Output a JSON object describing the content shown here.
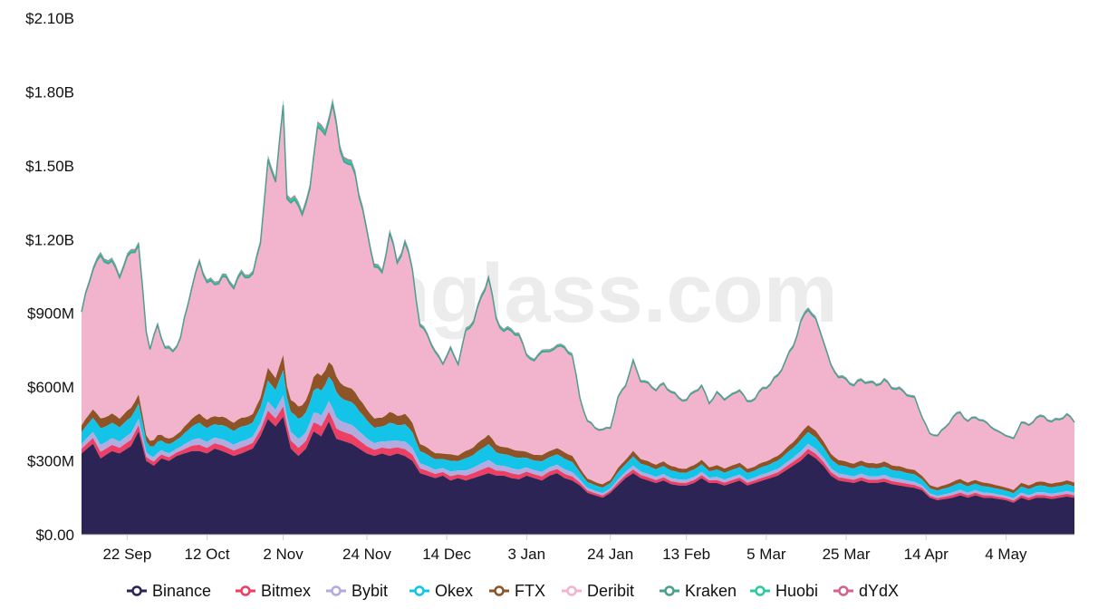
{
  "watermark": "coinglass.com",
  "chart_data": {
    "type": "area",
    "stacked": true,
    "title": "",
    "xlabel": "",
    "ylabel": "",
    "ylim": [
      0,
      2100000000
    ],
    "y_ticks": [
      0,
      300000000,
      600000000,
      900000000,
      1200000000,
      1500000000,
      1800000000,
      2100000000
    ],
    "y_tick_labels": [
      "$0.00",
      "$300M",
      "$600M",
      "$900M",
      "$1.20B",
      "$1.50B",
      "$1.80B",
      "$2.10B"
    ],
    "x_tick_labels": [
      "22 Sep",
      "12 Oct",
      "2 Nov",
      "24 Nov",
      "14 Dec",
      "3 Jan",
      "24 Jan",
      "13 Feb",
      "5 Mar",
      "25 Mar",
      "14 Apr",
      "4 May"
    ],
    "x_tick_index": [
      12,
      33,
      53,
      75,
      96,
      117,
      139,
      159,
      180,
      201,
      222,
      243
    ],
    "n_points": 262,
    "grid": false,
    "legend_position": "bottom",
    "anchors_total": [
      [
        0,
        980
      ],
      [
        3,
        1180
      ],
      [
        5,
        1230
      ],
      [
        8,
        1200
      ],
      [
        10,
        1150
      ],
      [
        13,
        1250
      ],
      [
        15,
        1270
      ],
      [
        17,
        900
      ],
      [
        18,
        820
      ],
      [
        20,
        920
      ],
      [
        22,
        820
      ],
      [
        24,
        800
      ],
      [
        26,
        860
      ],
      [
        29,
        1100
      ],
      [
        31,
        1200
      ],
      [
        33,
        1120
      ],
      [
        35,
        1100
      ],
      [
        37,
        1140
      ],
      [
        40,
        1100
      ],
      [
        42,
        1150
      ],
      [
        45,
        1140
      ],
      [
        47,
        1300
      ],
      [
        49,
        1640
      ],
      [
        51,
        1580
      ],
      [
        53,
        1890
      ],
      [
        54,
        1500
      ],
      [
        56,
        1480
      ],
      [
        58,
        1440
      ],
      [
        60,
        1520
      ],
      [
        62,
        1840
      ],
      [
        64,
        1760
      ],
      [
        66,
        1940
      ],
      [
        68,
        1700
      ],
      [
        70,
        1660
      ],
      [
        72,
        1600
      ],
      [
        74,
        1440
      ],
      [
        75,
        1340
      ],
      [
        77,
        1200
      ],
      [
        79,
        1150
      ],
      [
        81,
        1350
      ],
      [
        83,
        1200
      ],
      [
        85,
        1300
      ],
      [
        87,
        1180
      ],
      [
        89,
        920
      ],
      [
        91,
        890
      ],
      [
        93,
        800
      ],
      [
        95,
        760
      ],
      [
        97,
        820
      ],
      [
        99,
        760
      ],
      [
        101,
        900
      ],
      [
        103,
        950
      ],
      [
        105,
        1050
      ],
      [
        107,
        1150
      ],
      [
        109,
        960
      ],
      [
        111,
        900
      ],
      [
        113,
        910
      ],
      [
        115,
        880
      ],
      [
        117,
        800
      ],
      [
        119,
        760
      ],
      [
        121,
        820
      ],
      [
        123,
        800
      ],
      [
        125,
        840
      ],
      [
        127,
        820
      ],
      [
        129,
        800
      ],
      [
        131,
        600
      ],
      [
        133,
        500
      ],
      [
        135,
        470
      ],
      [
        137,
        460
      ],
      [
        139,
        470
      ],
      [
        141,
        600
      ],
      [
        143,
        660
      ],
      [
        145,
        760
      ],
      [
        147,
        680
      ],
      [
        149,
        660
      ],
      [
        151,
        640
      ],
      [
        153,
        660
      ],
      [
        155,
        630
      ],
      [
        157,
        600
      ],
      [
        159,
        590
      ],
      [
        161,
        630
      ],
      [
        163,
        650
      ],
      [
        165,
        580
      ],
      [
        167,
        620
      ],
      [
        169,
        600
      ],
      [
        171,
        610
      ],
      [
        173,
        640
      ],
      [
        175,
        580
      ],
      [
        177,
        600
      ],
      [
        179,
        640
      ],
      [
        181,
        660
      ],
      [
        183,
        700
      ],
      [
        185,
        760
      ],
      [
        187,
        830
      ],
      [
        189,
        930
      ],
      [
        191,
        1000
      ],
      [
        193,
        940
      ],
      [
        195,
        860
      ],
      [
        197,
        740
      ],
      [
        199,
        700
      ],
      [
        201,
        680
      ],
      [
        203,
        660
      ],
      [
        205,
        680
      ],
      [
        207,
        670
      ],
      [
        209,
        660
      ],
      [
        211,
        680
      ],
      [
        213,
        650
      ],
      [
        215,
        640
      ],
      [
        217,
        620
      ],
      [
        219,
        600
      ],
      [
        221,
        520
      ],
      [
        223,
        440
      ],
      [
        225,
        440
      ],
      [
        227,
        470
      ],
      [
        229,
        520
      ],
      [
        231,
        540
      ],
      [
        233,
        500
      ],
      [
        235,
        520
      ],
      [
        237,
        500
      ],
      [
        239,
        480
      ],
      [
        241,
        450
      ],
      [
        243,
        440
      ],
      [
        245,
        420
      ],
      [
        247,
        500
      ],
      [
        249,
        480
      ],
      [
        251,
        520
      ],
      [
        253,
        520
      ],
      [
        255,
        500
      ],
      [
        257,
        510
      ],
      [
        259,
        530
      ],
      [
        261,
        500
      ]
    ],
    "anchors_binance": [
      [
        0,
        330
      ],
      [
        3,
        370
      ],
      [
        5,
        310
      ],
      [
        8,
        340
      ],
      [
        10,
        330
      ],
      [
        13,
        360
      ],
      [
        15,
        420
      ],
      [
        17,
        300
      ],
      [
        19,
        280
      ],
      [
        21,
        310
      ],
      [
        23,
        300
      ],
      [
        25,
        320
      ],
      [
        27,
        330
      ],
      [
        29,
        340
      ],
      [
        31,
        340
      ],
      [
        33,
        330
      ],
      [
        35,
        350
      ],
      [
        37,
        340
      ],
      [
        40,
        320
      ],
      [
        42,
        330
      ],
      [
        45,
        350
      ],
      [
        47,
        400
      ],
      [
        49,
        470
      ],
      [
        51,
        440
      ],
      [
        53,
        480
      ],
      [
        55,
        350
      ],
      [
        57,
        320
      ],
      [
        59,
        350
      ],
      [
        61,
        420
      ],
      [
        63,
        400
      ],
      [
        65,
        460
      ],
      [
        67,
        390
      ],
      [
        69,
        380
      ],
      [
        71,
        370
      ],
      [
        73,
        350
      ],
      [
        75,
        330
      ],
      [
        77,
        320
      ],
      [
        79,
        330
      ],
      [
        81,
        320
      ],
      [
        83,
        330
      ],
      [
        85,
        320
      ],
      [
        87,
        300
      ],
      [
        89,
        250
      ],
      [
        91,
        240
      ],
      [
        93,
        230
      ],
      [
        95,
        240
      ],
      [
        97,
        220
      ],
      [
        99,
        230
      ],
      [
        101,
        220
      ],
      [
        103,
        230
      ],
      [
        105,
        240
      ],
      [
        107,
        250
      ],
      [
        109,
        240
      ],
      [
        111,
        240
      ],
      [
        113,
        230
      ],
      [
        115,
        225
      ],
      [
        117,
        240
      ],
      [
        119,
        230
      ],
      [
        121,
        220
      ],
      [
        123,
        240
      ],
      [
        125,
        250
      ],
      [
        127,
        230
      ],
      [
        129,
        220
      ],
      [
        131,
        200
      ],
      [
        133,
        170
      ],
      [
        135,
        160
      ],
      [
        137,
        150
      ],
      [
        139,
        170
      ],
      [
        141,
        200
      ],
      [
        143,
        230
      ],
      [
        145,
        250
      ],
      [
        147,
        230
      ],
      [
        149,
        220
      ],
      [
        151,
        210
      ],
      [
        153,
        220
      ],
      [
        155,
        205
      ],
      [
        157,
        200
      ],
      [
        159,
        200
      ],
      [
        161,
        210
      ],
      [
        163,
        230
      ],
      [
        165,
        210
      ],
      [
        167,
        210
      ],
      [
        169,
        200
      ],
      [
        171,
        210
      ],
      [
        173,
        220
      ],
      [
        175,
        200
      ],
      [
        177,
        210
      ],
      [
        179,
        220
      ],
      [
        181,
        230
      ],
      [
        183,
        240
      ],
      [
        185,
        260
      ],
      [
        187,
        280
      ],
      [
        189,
        300
      ],
      [
        191,
        330
      ],
      [
        193,
        310
      ],
      [
        195,
        280
      ],
      [
        197,
        240
      ],
      [
        199,
        220
      ],
      [
        201,
        215
      ],
      [
        203,
        210
      ],
      [
        205,
        220
      ],
      [
        207,
        210
      ],
      [
        209,
        210
      ],
      [
        211,
        215
      ],
      [
        213,
        205
      ],
      [
        215,
        200
      ],
      [
        217,
        195
      ],
      [
        219,
        190
      ],
      [
        221,
        180
      ],
      [
        223,
        150
      ],
      [
        225,
        140
      ],
      [
        227,
        145
      ],
      [
        229,
        150
      ],
      [
        231,
        160
      ],
      [
        233,
        150
      ],
      [
        235,
        160
      ],
      [
        237,
        150
      ],
      [
        239,
        150
      ],
      [
        241,
        145
      ],
      [
        243,
        140
      ],
      [
        245,
        130
      ],
      [
        247,
        150
      ],
      [
        249,
        140
      ],
      [
        251,
        150
      ],
      [
        253,
        150
      ],
      [
        255,
        145
      ],
      [
        257,
        150
      ],
      [
        259,
        155
      ],
      [
        261,
        150
      ]
    ],
    "ratios_above_binance": [
      0.028,
      0.03,
      0.07,
      0.042,
      0.69,
      0.0,
      0.012,
      0.004,
      0.095
    ],
    "series": [
      {
        "name": "Binance",
        "color": "#2c2454"
      },
      {
        "name": "Bitmex",
        "color": "#ec3f63"
      },
      {
        "name": "Bybit",
        "color": "#b3abe0"
      },
      {
        "name": "Okex",
        "color": "#14c4e8"
      },
      {
        "name": "FTX",
        "color": "#8e5428"
      },
      {
        "name": "Deribit",
        "color": "#f2b3cc"
      },
      {
        "name": "Kraken",
        "color": "#4c9e8f"
      },
      {
        "name": "Huobi",
        "color": "#2ec9a3"
      },
      {
        "name": "dYdX",
        "color": "#d1638f"
      }
    ]
  }
}
